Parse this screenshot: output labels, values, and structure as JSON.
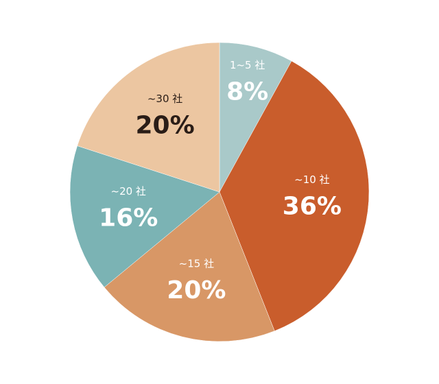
{
  "chart_data": {
    "type": "pie",
    "categories": [
      "1~5 社",
      "~10 社",
      "~15 社",
      "~20 社",
      "~30 社"
    ],
    "values": [
      8,
      36,
      20,
      16,
      20
    ],
    "value_labels": [
      "8%",
      "36%",
      "20%",
      "16%",
      "20%"
    ],
    "colors": [
      "#a9c9c9",
      "#c95d2c",
      "#d89766",
      "#7bb3b4",
      "#ecc6a1"
    ],
    "label_colors": [
      "#ffffff",
      "#ffffff",
      "#ffffff",
      "#ffffff",
      "#2a1d17"
    ]
  }
}
